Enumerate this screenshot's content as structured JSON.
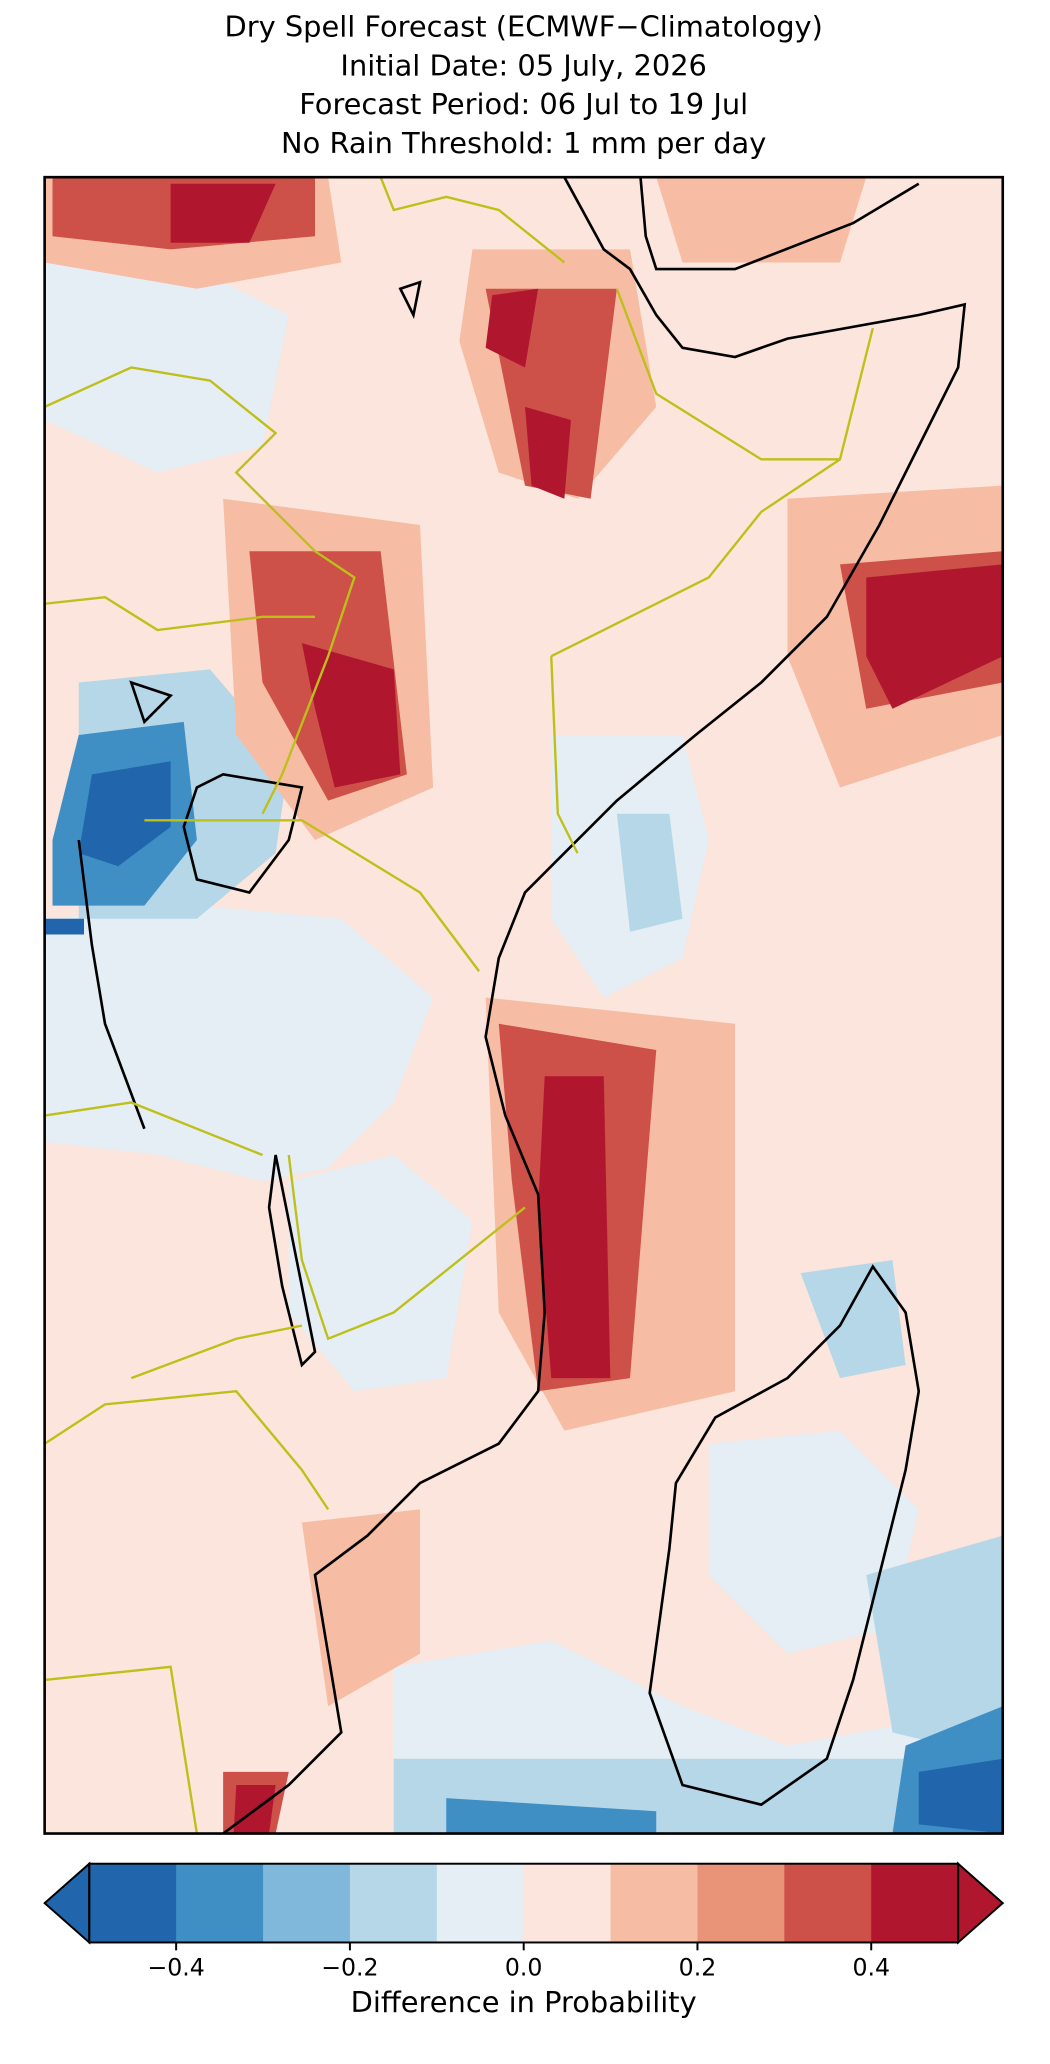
{
  "map": {
    "title": [
      "Dry Spell Forecast (ECMWF−Climatology)",
      "Initial Date: 05 July, 2026",
      "Forecast Period: 06 Jul to 19 Jul",
      "No Rain Threshold: 1 mm per day"
    ],
    "colorbar": {
      "label": "Difference in Probability",
      "levels": [
        -0.5,
        -0.4,
        -0.3,
        -0.2,
        -0.1,
        0,
        0.1,
        0.2,
        0.3,
        0.4,
        0.5
      ],
      "colors": [
        "#2166ac",
        "#3f8fc5",
        "#7fb8da",
        "#b6d7e8",
        "#e5eef4",
        "#fbe5dc",
        "#f6bda4",
        "#e99378",
        "#cd5049",
        "#b0172f"
      ],
      "extend": "both",
      "ticks": [
        {
          "value": -0.4,
          "label": "−0.4"
        },
        {
          "value": -0.2,
          "label": "−0.2"
        },
        {
          "value": 0,
          "label": "0.0"
        },
        {
          "value": 0.2,
          "label": "0.2"
        },
        {
          "value": 0.4,
          "label": "0.4"
        }
      ]
    }
  }
}
